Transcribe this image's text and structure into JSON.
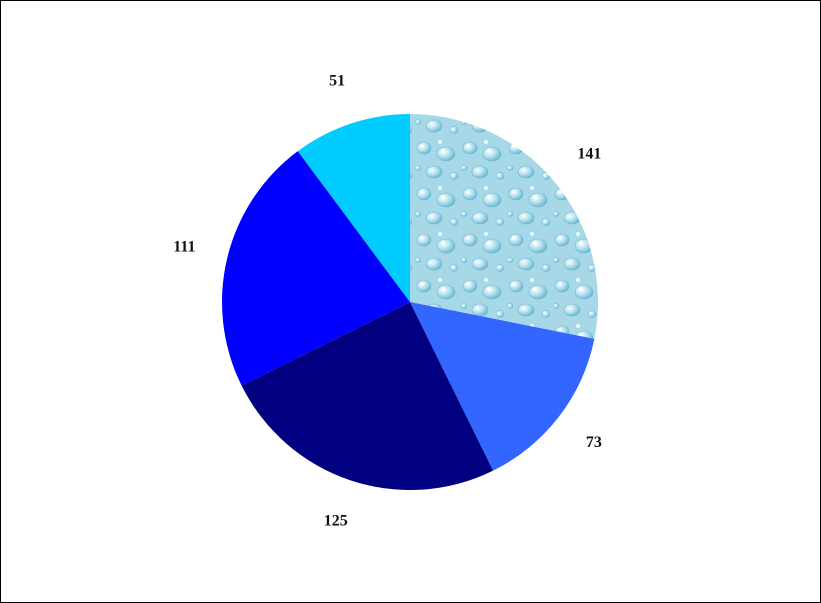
{
  "chart_data": {
    "type": "pie",
    "title": "",
    "slices": [
      {
        "value": 141,
        "label": "141",
        "color": "#9fd6e8",
        "fill_style": "water-droplet-texture"
      },
      {
        "value": 73,
        "label": "73",
        "color": "#3366ff",
        "fill_style": "solid"
      },
      {
        "value": 125,
        "label": "125",
        "color": "#000080",
        "fill_style": "solid"
      },
      {
        "value": 111,
        "label": "111",
        "color": "#0000ff",
        "fill_style": "solid"
      },
      {
        "value": 51,
        "label": "51",
        "color": "#00ccff",
        "fill_style": "solid"
      }
    ],
    "start_position": "top",
    "direction": "clockwise",
    "legend": "none",
    "data_labels": "outside"
  }
}
